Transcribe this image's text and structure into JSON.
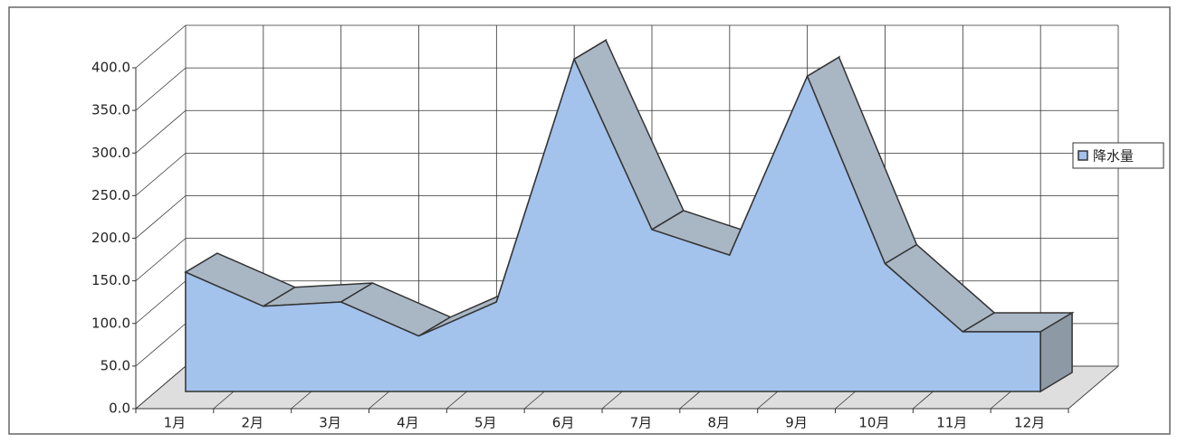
{
  "chart_data": {
    "type": "area3d",
    "categories": [
      "1月",
      "2月",
      "3月",
      "4月",
      "5月",
      "6月",
      "7月",
      "8月",
      "9月",
      "10月",
      "11月",
      "12月"
    ],
    "series": [
      {
        "name": "降水量",
        "color": "#a3c2ec",
        "values": [
          140,
          100,
          105,
          65,
          105,
          390,
          190,
          160,
          370,
          150,
          70,
          70
        ]
      }
    ],
    "ylim": [
      0,
      400
    ],
    "yticks": [
      {
        "value": 0,
        "label": "0.0"
      },
      {
        "value": 50,
        "label": "50.0"
      },
      {
        "value": 100,
        "label": "100.0"
      },
      {
        "value": 150,
        "label": "150.0"
      },
      {
        "value": 200,
        "label": "200.0"
      },
      {
        "value": 250,
        "label": "250.0"
      },
      {
        "value": 300,
        "label": "300.0"
      },
      {
        "value": 350,
        "label": "350.0"
      },
      {
        "value": 400,
        "label": "400.0"
      }
    ],
    "grid": true,
    "legend": "right"
  }
}
